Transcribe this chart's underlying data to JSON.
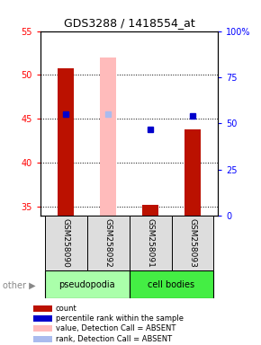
{
  "title": "GDS3288 / 1418554_at",
  "samples": [
    "GSM258090",
    "GSM258092",
    "GSM258091",
    "GSM258093"
  ],
  "ylim_left": [
    34,
    55
  ],
  "ylim_right": [
    0,
    100
  ],
  "yticks_left": [
    35,
    40,
    45,
    50,
    55
  ],
  "yticks_right": [
    0,
    25,
    50,
    75,
    100
  ],
  "ytick_right_labels": [
    "0",
    "25",
    "50",
    "75",
    "100%"
  ],
  "bar_values": [
    50.8,
    null,
    35.2,
    43.8
  ],
  "bar_colors": [
    "#bb1100",
    null,
    "#bb1100",
    "#bb1100"
  ],
  "bar_absent_values": [
    null,
    52.0,
    null,
    null
  ],
  "bar_absent_color": "#ffbbbb",
  "dot_values": [
    45.5,
    null,
    43.8,
    45.3
  ],
  "dot_color": "#0000cc",
  "dot_absent_values": [
    null,
    45.5,
    null,
    null
  ],
  "dot_absent_color": "#aabbee",
  "bar_bottom": 34,
  "group_colors": {
    "pseudopodia": "#aaffaa",
    "cell bodies": "#44ee44"
  },
  "legend_items": [
    {
      "label": "count",
      "color": "#bb1100"
    },
    {
      "label": "percentile rank within the sample",
      "color": "#0000cc"
    },
    {
      "label": "value, Detection Call = ABSENT",
      "color": "#ffbbbb"
    },
    {
      "label": "rank, Detection Call = ABSENT",
      "color": "#aabbee"
    }
  ],
  "dotted_yticks": [
    35,
    40,
    45,
    50
  ],
  "bar_width": 0.38,
  "x_positions": [
    0,
    1,
    2,
    3
  ]
}
